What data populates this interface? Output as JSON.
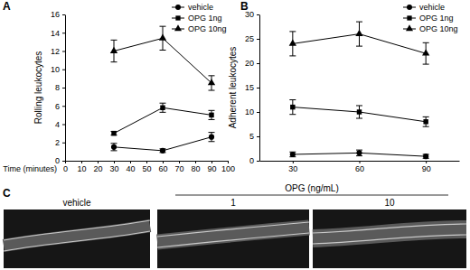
{
  "chart_data": [
    {
      "panel": "A",
      "type": "line",
      "y_label": "Rolling leukocytes",
      "x_label": "Time (minutes)",
      "x": [
        30,
        60,
        90
      ],
      "xlim": [
        0,
        100
      ],
      "xticks": [
        0,
        10,
        20,
        30,
        40,
        50,
        60,
        70,
        80,
        90,
        100
      ],
      "ylim": [
        0,
        16
      ],
      "yticks": [
        0,
        2,
        4,
        6,
        8,
        10,
        12,
        14,
        16
      ],
      "legend": "upper right",
      "series": [
        {
          "name": "vehicle",
          "color": "#000000",
          "marker": "circle",
          "values": [
            1.5,
            1.1,
            2.6
          ],
          "errors": [
            0.4,
            0.2,
            0.5
          ]
        },
        {
          "name": "OPG 1ng",
          "color": "#000000",
          "marker": "square",
          "values": [
            3.0,
            5.8,
            5.0
          ],
          "errors": [
            0.2,
            0.5,
            0.5
          ]
        },
        {
          "name": "OPG 10ng",
          "color": "#000000",
          "marker": "triangle",
          "values": [
            12.0,
            13.4,
            8.5
          ],
          "errors": [
            1.2,
            1.3,
            0.8
          ]
        }
      ]
    },
    {
      "panel": "B",
      "type": "line",
      "y_label": "Adherent leukocytes",
      "x": [
        30,
        60,
        90
      ],
      "xlim": [
        15,
        105
      ],
      "xticks": [
        30,
        60,
        90
      ],
      "ylim": [
        0,
        30
      ],
      "yticks": [
        0,
        5,
        10,
        15,
        20,
        25,
        30
      ],
      "legend": "upper right",
      "series": [
        {
          "name": "vehicle",
          "color": "#000000",
          "marker": "circle",
          "values": [
            1.3,
            1.6,
            0.9
          ],
          "errors": [
            0.5,
            0.6,
            0.4
          ]
        },
        {
          "name": "OPG 1ng",
          "color": "#000000",
          "marker": "square",
          "values": [
            11,
            10,
            8
          ],
          "errors": [
            1.5,
            1.3,
            1.0
          ]
        },
        {
          "name": "OPG 10ng",
          "color": "#000000",
          "marker": "triangle",
          "values": [
            24,
            26,
            22
          ],
          "errors": [
            2.5,
            2.5,
            2.2
          ]
        }
      ]
    }
  ],
  "images": {
    "panel": "C",
    "group_label": "OPG (ng/mL)",
    "labels": [
      "vehicle",
      "1",
      "10"
    ]
  }
}
